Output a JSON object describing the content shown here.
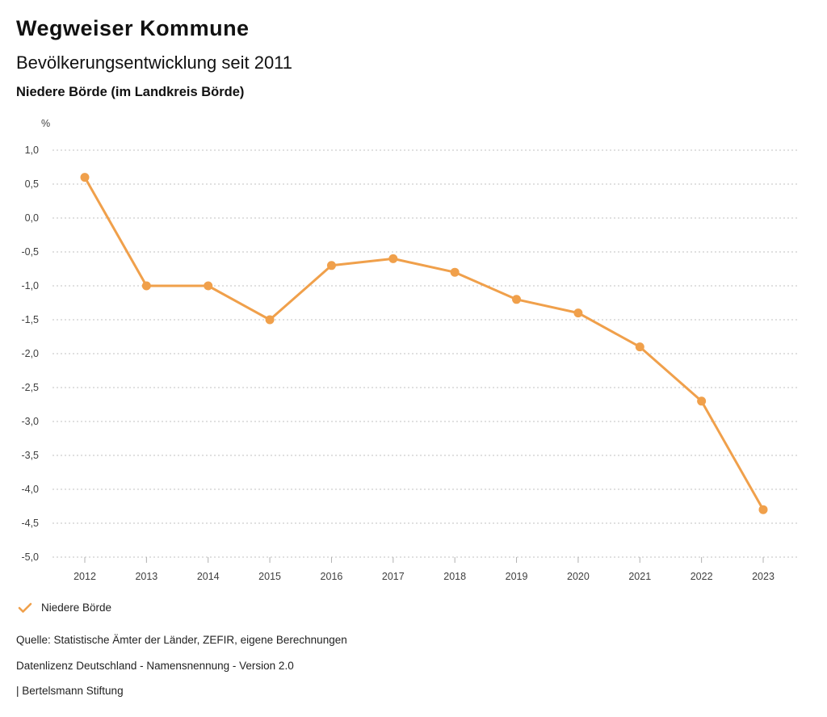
{
  "header": {
    "title": "Wegweiser Kommune",
    "subtitle": "Bevölkerungsentwicklung seit 2011",
    "region": "Niedere Börde (im Landkreis Börde)"
  },
  "chart_data": {
    "type": "line",
    "title": "Bevölkerungsentwicklung seit 2011",
    "subtitle": "Niedere Börde (im Landkreis Börde)",
    "categories": [
      "2012",
      "2013",
      "2014",
      "2015",
      "2016",
      "2017",
      "2018",
      "2019",
      "2020",
      "2021",
      "2022",
      "2023"
    ],
    "series": [
      {
        "name": "Niedere Börde",
        "color": "#F0A04B",
        "values": [
          0.6,
          -1.0,
          -1.0,
          -1.5,
          -0.7,
          -0.6,
          -0.8,
          -1.2,
          -1.4,
          -1.9,
          -2.7,
          -4.3
        ]
      }
    ],
    "xlabel": "",
    "ylabel": "%",
    "ylim": [
      -5.0,
      1.0
    ],
    "ytick_step": 0.5,
    "ytick_labels": [
      "1,0",
      "0,5",
      "0,0",
      "-0,5",
      "-1,0",
      "-1,5",
      "-2,0",
      "-2,5",
      "-3,0",
      "-3,5",
      "-4,0",
      "-4,5",
      "-5,0"
    ],
    "grid": "dotted-horizontal",
    "legend_position": "bottom-left",
    "number_format": "de-comma"
  },
  "legend": {
    "items": [
      {
        "label": "Niedere Börde",
        "checked": true,
        "color": "#F0A04B"
      }
    ]
  },
  "footer": {
    "source": "Quelle: Statistische Ämter der Länder, ZEFIR, eigene Berechnungen",
    "license": "Datenlizenz Deutschland - Namensnennung - Version 2.0",
    "attribution": "| Bertelsmann Stiftung"
  },
  "colors": {
    "series": "#F0A04B",
    "gridline": "#C2C2C2",
    "title_text": "#111111",
    "axis_text": "#3F3F3F",
    "background": "#FFFFFF"
  }
}
